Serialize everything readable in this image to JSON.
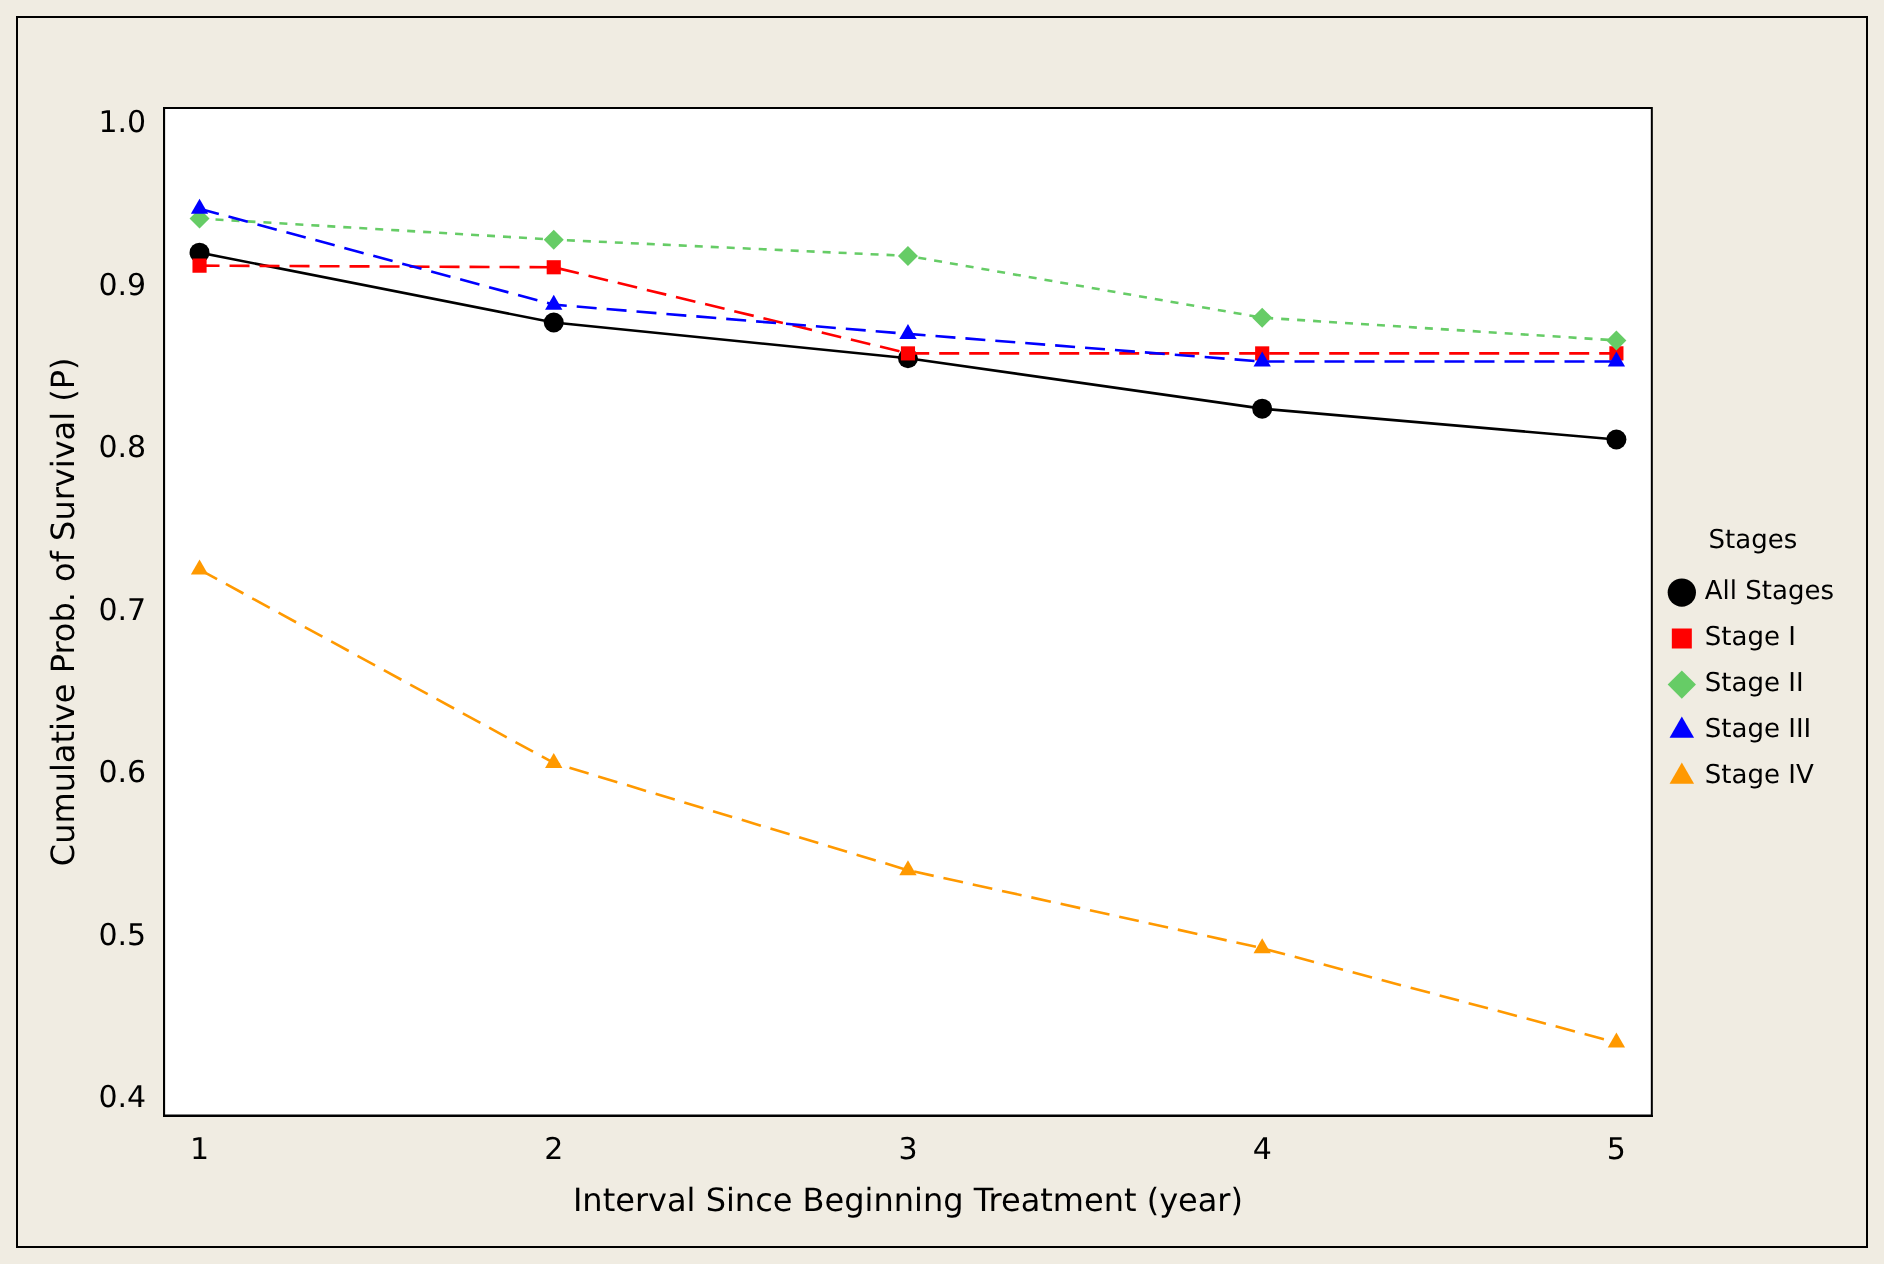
{
  "chart_data": {
    "type": "line",
    "xlabel": "Interval Since Beginning Treatment (year)",
    "ylabel": "Cumulative Prob. of Survival (P)",
    "legend_title": "Stages",
    "x": [
      1,
      2,
      3,
      4,
      5
    ],
    "xlim": [
      0.9,
      5.1
    ],
    "xticks": [
      1,
      2,
      3,
      4,
      5
    ],
    "ylim": [
      0.39,
      1.01
    ],
    "yticks": [
      {
        "value": 0.4,
        "label": "0.4"
      },
      {
        "value": 0.5,
        "label": "0.5"
      },
      {
        "value": 0.6,
        "label": "0.6"
      },
      {
        "value": 0.7,
        "label": "0.7"
      },
      {
        "value": 0.8,
        "label": "0.8"
      },
      {
        "value": 0.9,
        "label": "0.9"
      },
      {
        "value": 1.0,
        "label": "1.0"
      }
    ],
    "grid": false,
    "legend": "right",
    "series": [
      {
        "name": "All Stages",
        "color": "#000000",
        "marker": "circle",
        "line_style": "solid",
        "values": [
          0.921,
          0.878,
          0.856,
          0.825,
          0.806
        ]
      },
      {
        "name": "Stage I",
        "color": "#ff0000",
        "marker": "square",
        "line_style": "dashed",
        "values": [
          0.913,
          0.912,
          0.859,
          0.859,
          0.859
        ]
      },
      {
        "name": "Stage II",
        "color": "#66cc66",
        "marker": "diamond",
        "line_style": "dotted",
        "values": [
          0.942,
          0.929,
          0.919,
          0.881,
          0.867
        ]
      },
      {
        "name": "Stage III",
        "color": "#0000ff",
        "marker": "triangle",
        "line_style": "dashed",
        "values": [
          0.948,
          0.889,
          0.871,
          0.854,
          0.854
        ]
      },
      {
        "name": "Stage IV",
        "color": "#ff9900",
        "marker": "triangle",
        "line_style": "dashed",
        "values": [
          0.726,
          0.607,
          0.541,
          0.493,
          0.435
        ]
      }
    ]
  }
}
